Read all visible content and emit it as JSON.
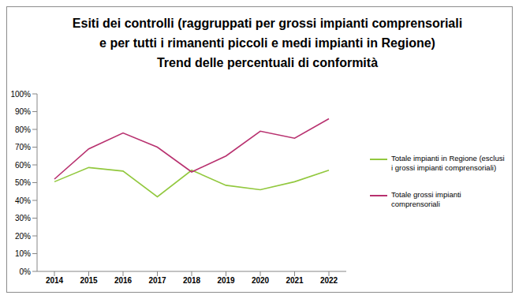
{
  "chart_data": {
    "type": "line",
    "title": "Esiti dei controlli (raggruppati per grossi impianti comprensoriali\ne per tutti i rimanenti piccoli e medi impianti in Regione)\nTrend delle percentuali di conformità",
    "categories": [
      "2014",
      "2015",
      "2016",
      "2017",
      "2018",
      "2019",
      "2020",
      "2021",
      "2022"
    ],
    "series": [
      {
        "name": "Totale impianti in Regione (esclusi i grossi impianti comprensoriali)",
        "color": "#92c83e",
        "values": [
          50.5,
          58.5,
          56.5,
          42,
          57,
          48.5,
          46,
          50.5,
          57
        ]
      },
      {
        "name": "Totale grossi impianti comprensoriali",
        "color": "#b8316f",
        "values": [
          52,
          69,
          78,
          70,
          56,
          65,
          79,
          75,
          86
        ]
      }
    ],
    "ylim": [
      0,
      100
    ],
    "yticks": [
      {
        "value": 0,
        "label": "0%"
      },
      {
        "value": 10,
        "label": "10%"
      },
      {
        "value": 20,
        "label": "20%"
      },
      {
        "value": 30,
        "label": "30%"
      },
      {
        "value": 40,
        "label": "40%"
      },
      {
        "value": 50,
        "label": "50%"
      },
      {
        "value": 60,
        "label": "60%"
      },
      {
        "value": 70,
        "label": "70%"
      },
      {
        "value": 80,
        "label": "80%"
      },
      {
        "value": 90,
        "label": "90%"
      },
      {
        "value": 100,
        "label": "100%"
      }
    ],
    "grid": false,
    "legend": "right"
  }
}
